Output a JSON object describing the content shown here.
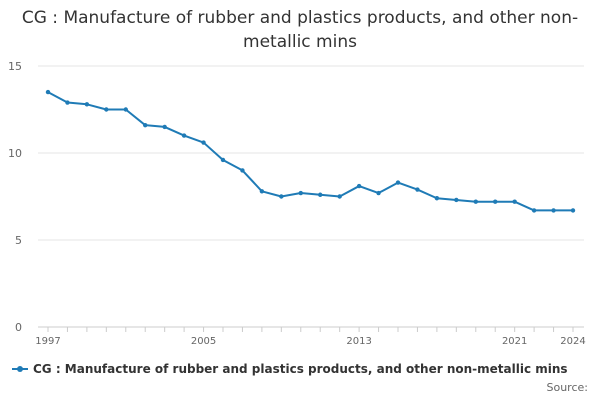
{
  "title": "CG : Manufacture of rubber and plastics products, and other non-metallic mins",
  "source_label": "Source:",
  "colors": {
    "series": "#1f7bb6",
    "grid": "#e6e6e6",
    "axis": "#cccccc",
    "text": "#333333"
  },
  "chart_data": {
    "type": "line",
    "title": "CG : Manufacture of rubber and plastics products, and other non-metallic mins",
    "xlabel": "",
    "ylabel": "",
    "xlim": [
      1997,
      2024
    ],
    "ylim": [
      0,
      15
    ],
    "yticks": [
      0,
      5,
      10,
      15
    ],
    "xticks_labeled": [
      1997,
      2005,
      2013,
      2021,
      2024
    ],
    "grid": true,
    "legend": "bottom",
    "series": [
      {
        "name": "CG : Manufacture of rubber and plastics products, and other non-metallic mins",
        "x": [
          1997,
          1998,
          1999,
          2000,
          2001,
          2002,
          2003,
          2004,
          2005,
          2006,
          2007,
          2008,
          2009,
          2010,
          2011,
          2012,
          2013,
          2014,
          2015,
          2016,
          2017,
          2018,
          2019,
          2020,
          2021,
          2022,
          2023,
          2024
        ],
        "values": [
          13.5,
          12.9,
          12.8,
          12.5,
          12.5,
          11.6,
          11.5,
          11.0,
          10.6,
          9.6,
          9.0,
          7.8,
          7.5,
          7.7,
          7.6,
          7.5,
          8.1,
          7.7,
          8.3,
          7.9,
          7.4,
          7.3,
          7.2,
          7.2,
          7.2,
          6.7,
          6.7,
          6.7
        ]
      }
    ]
  }
}
